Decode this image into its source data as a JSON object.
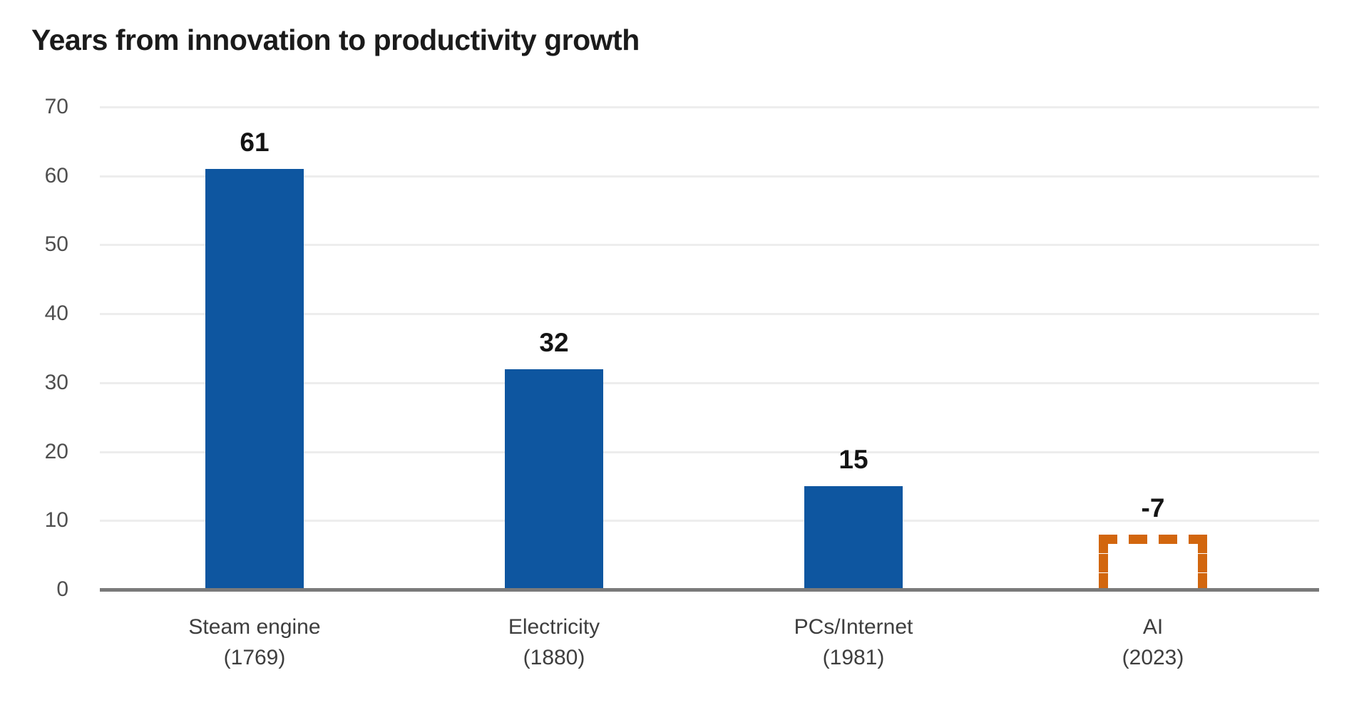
{
  "chart": {
    "background": "#ffffff",
    "colors": {
      "bar_fill": "#0e56a0",
      "dashed_bar_outline": "#d2660e",
      "axis_line": "#7a7a7a",
      "gridline": "#ededed",
      "title_text": "#1b1b1b",
      "value_label_text": "#141414",
      "y_tick_text": "#4f4f4f",
      "category_text": "#3e3e3e"
    }
  },
  "chart_data": {
    "type": "bar",
    "title": "Years from innovation to productivity growth",
    "xlabel": "",
    "ylabel": "",
    "ylim": [
      0,
      70
    ],
    "yticks": [
      0,
      10,
      20,
      30,
      40,
      50,
      60,
      70
    ],
    "grid": "horizontal-light",
    "legend": "none",
    "categories": [
      "Steam engine (1769)",
      "Electricity (1880)",
      "PCs/Internet (1981)",
      "AI (2023)"
    ],
    "values": [
      61,
      32,
      15,
      -7
    ],
    "bars": [
      {
        "name": "Steam engine",
        "year": "(1769)",
        "value": 61,
        "value_label": "61",
        "style": "solid"
      },
      {
        "name": "Electricity",
        "year": "(1880)",
        "value": 32,
        "value_label": "32",
        "style": "solid"
      },
      {
        "name": "PCs/Internet",
        "year": "(1981)",
        "value": 15,
        "value_label": "15",
        "style": "solid"
      },
      {
        "name": "AI",
        "year": "(2023)",
        "value": -7,
        "value_label": "-7",
        "style": "dashed-outline",
        "drawn_height_units": 8
      }
    ]
  }
}
